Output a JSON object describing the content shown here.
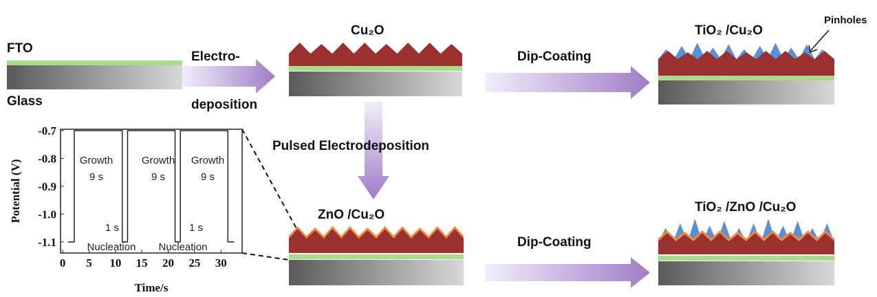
{
  "labels": {
    "fto": "FTO",
    "glass": "Glass",
    "electro_1": "Electro-",
    "electro_2": "deposition",
    "cu2o": "Cu₂O",
    "dip_coating_1": "Dip-Coating",
    "tio2_cu2o": "TiO₂ /Cu₂O",
    "pinholes": "Pinholes",
    "pulsed": "Pulsed Electrodeposition",
    "zno_cu2o": "ZnO /Cu₂O",
    "dip_coating_2": "Dip-Coating",
    "tio2_zno_cu2o": "TiO₂ /ZnO /Cu₂O"
  },
  "chart_data": {
    "type": "line",
    "xlabel": "Time/s",
    "ylabel": "Potential (V)",
    "xlim": [
      -0.4,
      34
    ],
    "ylim": [
      -1.14,
      -0.695
    ],
    "xticks": [
      0,
      5,
      10,
      15,
      20,
      25,
      30
    ],
    "yticks": [
      {
        "value": -0.7,
        "label": "-0.7"
      },
      {
        "value": -0.8,
        "label": "-0.8"
      },
      {
        "value": -0.9,
        "label": "-0.9"
      },
      {
        "value": -1.0,
        "label": "-1.0"
      },
      {
        "value": -1.1,
        "label": "-1.1"
      }
    ],
    "series": [
      {
        "color": "#222222",
        "x": [
          1,
          2.2,
          2.2,
          11.3,
          11.3,
          12.3,
          12.3,
          21.3,
          21.3,
          22.3,
          22.3,
          31.3,
          31.3,
          32.5
        ],
        "values": [
          -1.1,
          -1.1,
          -0.7,
          -0.7,
          -1.1,
          -1.1,
          -0.7,
          -0.7,
          -1.1,
          -1.1,
          -0.7,
          -0.7,
          -1.1,
          -1.1
        ]
      }
    ],
    "annotations": [
      "Growth",
      "9 s",
      "Growth",
      "9 s",
      "Growth",
      "9 s",
      "1 s",
      "1 s",
      "Nucleation",
      "Nucleation"
    ]
  }
}
